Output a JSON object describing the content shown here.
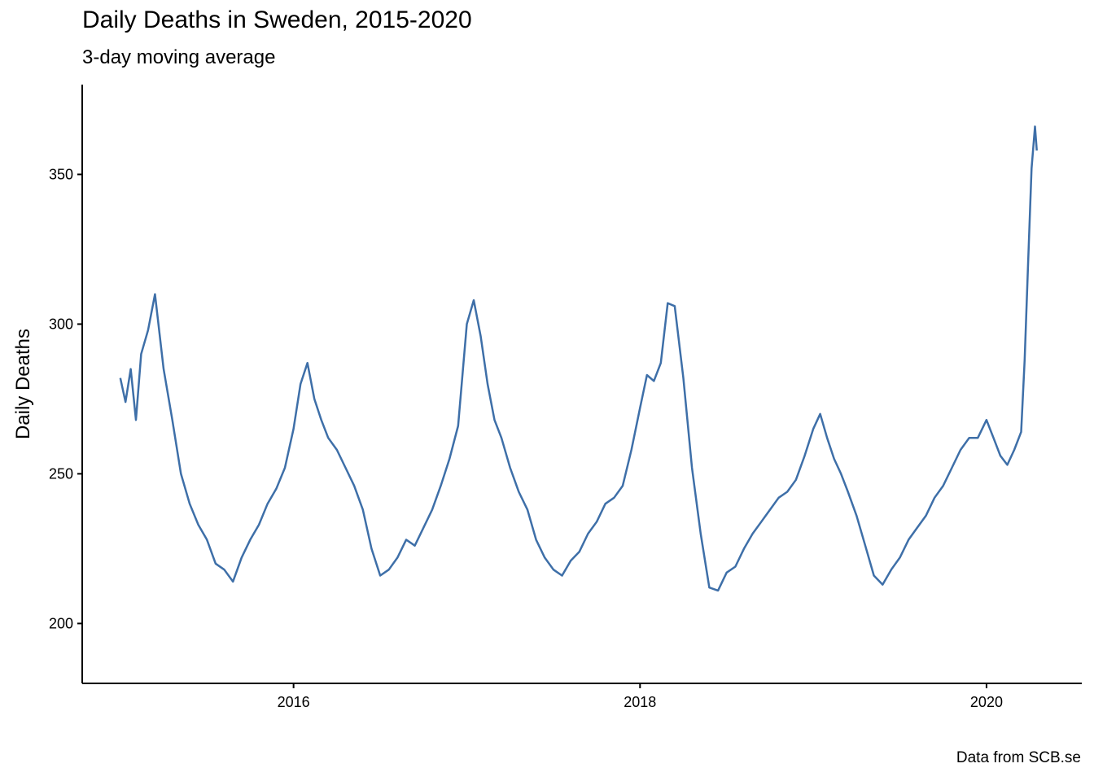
{
  "chart_data": {
    "type": "line",
    "title": "Daily Deaths in Sweden, 2015-2020",
    "subtitle": "3-day moving average",
    "caption": "Data from SCB.se",
    "xlabel": "",
    "ylabel": "Daily Deaths",
    "x_ticks": [
      2016,
      2018,
      2020
    ],
    "y_ticks": [
      200,
      250,
      300,
      350
    ],
    "xlim": [
      2014.78,
      2020.55
    ],
    "ylim": [
      180,
      380
    ],
    "grid": false,
    "legend": "none",
    "color": "#3E6FA8",
    "series": [
      {
        "x": [
          2015.0,
          2015.03,
          2015.06,
          2015.09,
          2015.12,
          2015.16,
          2015.2,
          2015.25,
          2015.3,
          2015.35,
          2015.4,
          2015.45,
          2015.5,
          2015.55,
          2015.6,
          2015.65,
          2015.7,
          2015.75,
          2015.8,
          2015.85,
          2015.9,
          2015.95,
          2016.0,
          2016.04,
          2016.08,
          2016.12,
          2016.16,
          2016.2,
          2016.25,
          2016.3,
          2016.35,
          2016.4,
          2016.45,
          2016.5,
          2016.55,
          2016.6,
          2016.65,
          2016.7,
          2016.75,
          2016.8,
          2016.85,
          2016.9,
          2016.95,
          2017.0,
          2017.04,
          2017.08,
          2017.12,
          2017.16,
          2017.2,
          2017.25,
          2017.3,
          2017.35,
          2017.4,
          2017.45,
          2017.5,
          2017.55,
          2017.6,
          2017.65,
          2017.7,
          2017.75,
          2017.8,
          2017.85,
          2017.9,
          2017.95,
          2018.0,
          2018.04,
          2018.08,
          2018.12,
          2018.16,
          2018.2,
          2018.25,
          2018.3,
          2018.35,
          2018.4,
          2018.45,
          2018.5,
          2018.55,
          2018.6,
          2018.65,
          2018.7,
          2018.75,
          2018.8,
          2018.85,
          2018.9,
          2018.95,
          2019.0,
          2019.04,
          2019.08,
          2019.12,
          2019.16,
          2019.2,
          2019.25,
          2019.3,
          2019.35,
          2019.4,
          2019.45,
          2019.5,
          2019.55,
          2019.6,
          2019.65,
          2019.7,
          2019.75,
          2019.8,
          2019.85,
          2019.9,
          2019.95,
          2020.0,
          2020.04,
          2020.08,
          2020.12,
          2020.16,
          2020.2,
          2020.22,
          2020.24,
          2020.26,
          2020.28,
          2020.29
        ],
        "y": [
          282,
          274,
          285,
          268,
          290,
          298,
          310,
          285,
          268,
          250,
          240,
          233,
          228,
          220,
          218,
          214,
          222,
          228,
          233,
          240,
          245,
          252,
          265,
          280,
          287,
          275,
          268,
          262,
          258,
          252,
          246,
          238,
          225,
          216,
          218,
          222,
          228,
          226,
          232,
          238,
          246,
          255,
          266,
          300,
          308,
          296,
          280,
          268,
          262,
          252,
          244,
          238,
          228,
          222,
          218,
          216,
          221,
          224,
          230,
          234,
          240,
          242,
          246,
          258,
          272,
          283,
          281,
          287,
          307,
          306,
          282,
          252,
          230,
          212,
          211,
          217,
          219,
          225,
          230,
          234,
          238,
          242,
          244,
          248,
          256,
          265,
          270,
          262,
          255,
          250,
          244,
          236,
          226,
          216,
          213,
          218,
          222,
          228,
          232,
          236,
          242,
          246,
          252,
          258,
          262,
          262,
          268,
          262,
          256,
          253,
          258,
          264,
          288,
          320,
          352,
          366,
          358
        ]
      }
    ]
  }
}
